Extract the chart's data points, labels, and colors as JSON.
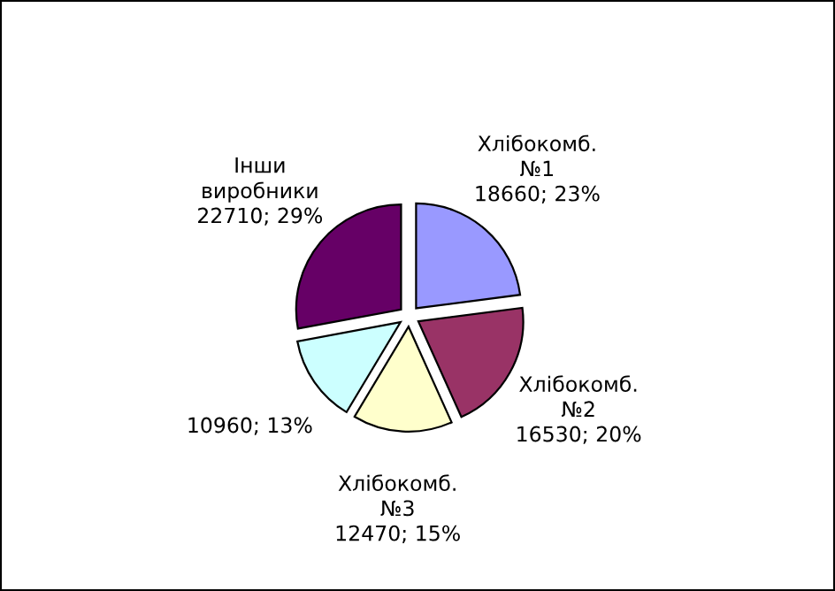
{
  "chart_data": {
    "type": "pie",
    "categories": [
      "Хлібокомб.\n№1",
      "Хлібокомб.\n№2",
      "Хлібокомб.\n№3",
      null,
      "Інши\nвиробники"
    ],
    "values": [
      18660,
      16530,
      12470,
      10960,
      22710
    ],
    "value_labels": [
      "18660; 23%",
      "16530; 20%",
      "12470; 15%",
      "10960; 13%",
      "22710; 29%"
    ],
    "colors": [
      "#9999ff",
      "#993366",
      "#ffffcc",
      "#ccffff",
      "#660066"
    ],
    "legend": false
  }
}
